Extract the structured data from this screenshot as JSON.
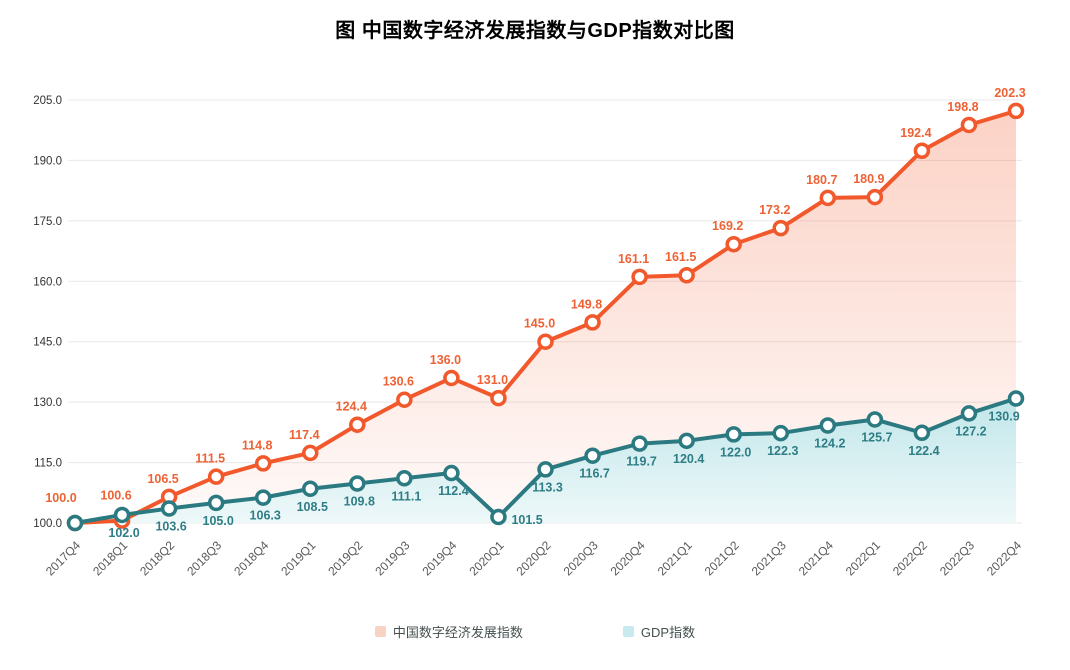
{
  "title": "图 中国数字经济发展指数与GDP指数对比图",
  "chart_data": {
    "type": "line",
    "categories": [
      "2017Q4",
      "2018Q1",
      "2018Q2",
      "2018Q3",
      "2018Q4",
      "2019Q1",
      "2019Q2",
      "2019Q3",
      "2019Q4",
      "2020Q1",
      "2020Q2",
      "2020Q3",
      "2020Q4",
      "2021Q1",
      "2021Q2",
      "2021Q3",
      "2021Q4",
      "2022Q1",
      "2022Q2",
      "2022Q3",
      "2022Q4"
    ],
    "series": [
      {
        "name": "中国数字经济发展指数",
        "values": [
          100.0,
          100.6,
          106.5,
          111.5,
          114.8,
          117.4,
          124.4,
          130.6,
          136.0,
          131.0,
          145.0,
          149.8,
          161.1,
          161.5,
          169.2,
          173.2,
          180.7,
          180.9,
          192.4,
          198.8,
          202.3
        ],
        "line_color": "#f1582b",
        "label_color": "#ee6234",
        "area_top": "rgba(241,88,43,0.27)",
        "area_bottom": "rgba(241,88,43,0.03)"
      },
      {
        "name": "GDP指数",
        "values": [
          100.0,
          102.0,
          103.6,
          105.0,
          106.3,
          108.5,
          109.8,
          111.1,
          112.4,
          101.5,
          113.3,
          116.7,
          119.7,
          120.4,
          122.0,
          122.3,
          124.2,
          125.7,
          122.4,
          127.2,
          130.9
        ],
        "line_color": "#2b7a82",
        "label_color": "#2f7e86",
        "area_top": "rgba(190,230,234,0.95)",
        "area_bottom": "rgba(237,248,249,0.95)"
      }
    ],
    "ylim": [
      100,
      205
    ],
    "yticks": [
      100.0,
      115.0,
      130.0,
      145.0,
      160.0,
      175.0,
      190.0,
      205.0
    ],
    "grid": true,
    "legend_position": "bottom",
    "axis_colors": {
      "y_tick_label": "#333333",
      "x_tick_label": "#595959",
      "gridline": "#e8e8e8"
    }
  },
  "legend": {
    "items": [
      {
        "label": "中国数字经济发展指数",
        "swatch": "#f8d2c2"
      },
      {
        "label": "GDP指数",
        "swatch": "#c8e9ee"
      }
    ]
  }
}
